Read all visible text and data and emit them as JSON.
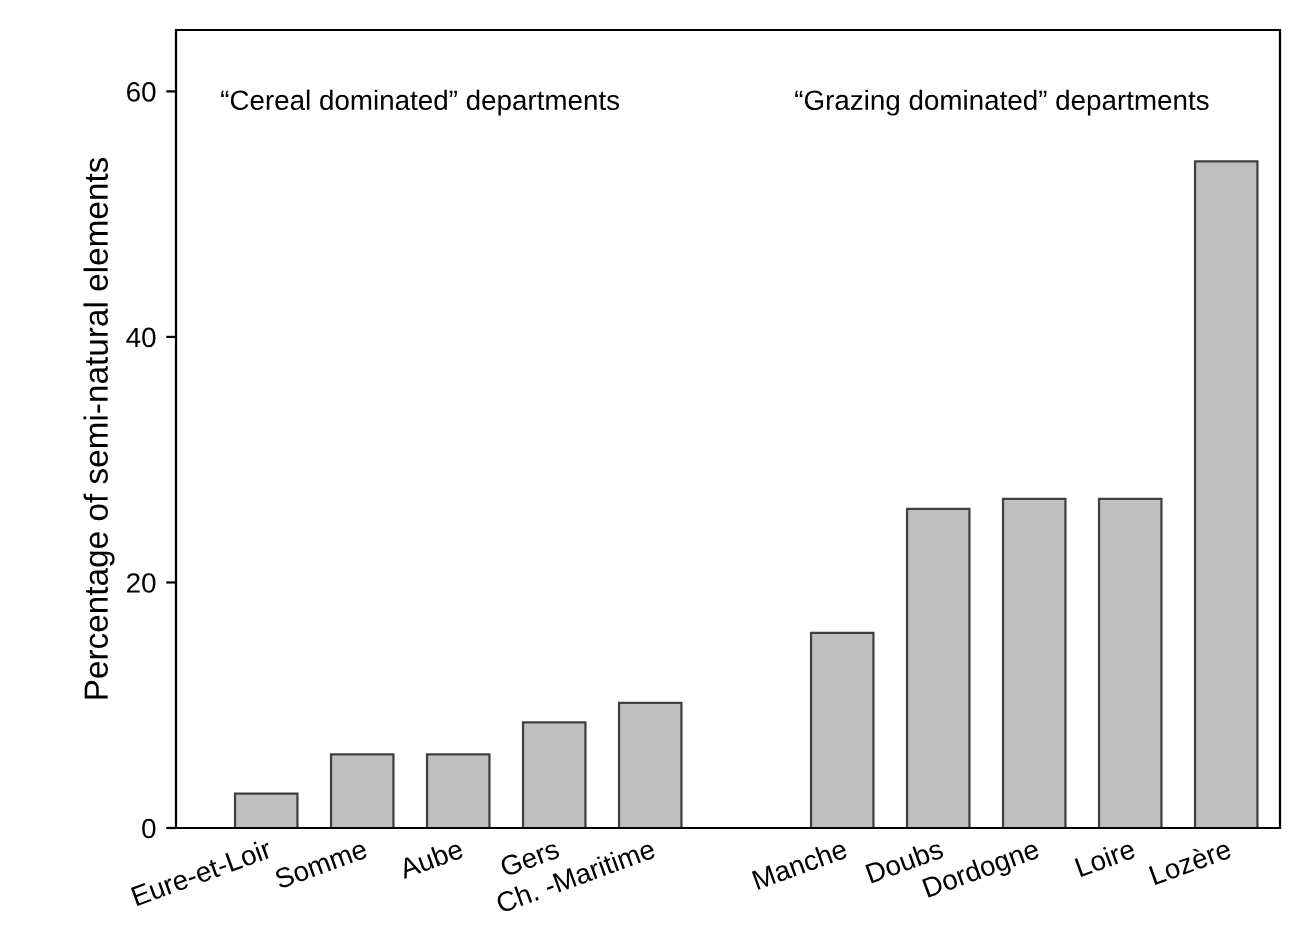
{
  "chart_data": {
    "type": "bar",
    "ylabel": "Percentage of semi-natural elements",
    "categories": [
      "Eure-et-Loir",
      "Somme",
      "Aube",
      "Gers",
      "Ch. -Maritime",
      null,
      "Manche",
      "Doubs",
      "Dordogne",
      "Loire",
      "Lozère"
    ],
    "values": [
      2.8,
      6.0,
      6.0,
      8.6,
      10.2,
      null,
      15.9,
      26.0,
      26.8,
      26.8,
      54.3
    ],
    "color": "#c0c0c0",
    "ylim": [
      0,
      65
    ],
    "yticks": [
      0,
      20,
      40,
      60
    ],
    "grid": false,
    "legend": false,
    "annotations": [
      "“Cereal dominated” departments",
      "“Grazing dominated” departments"
    ]
  }
}
